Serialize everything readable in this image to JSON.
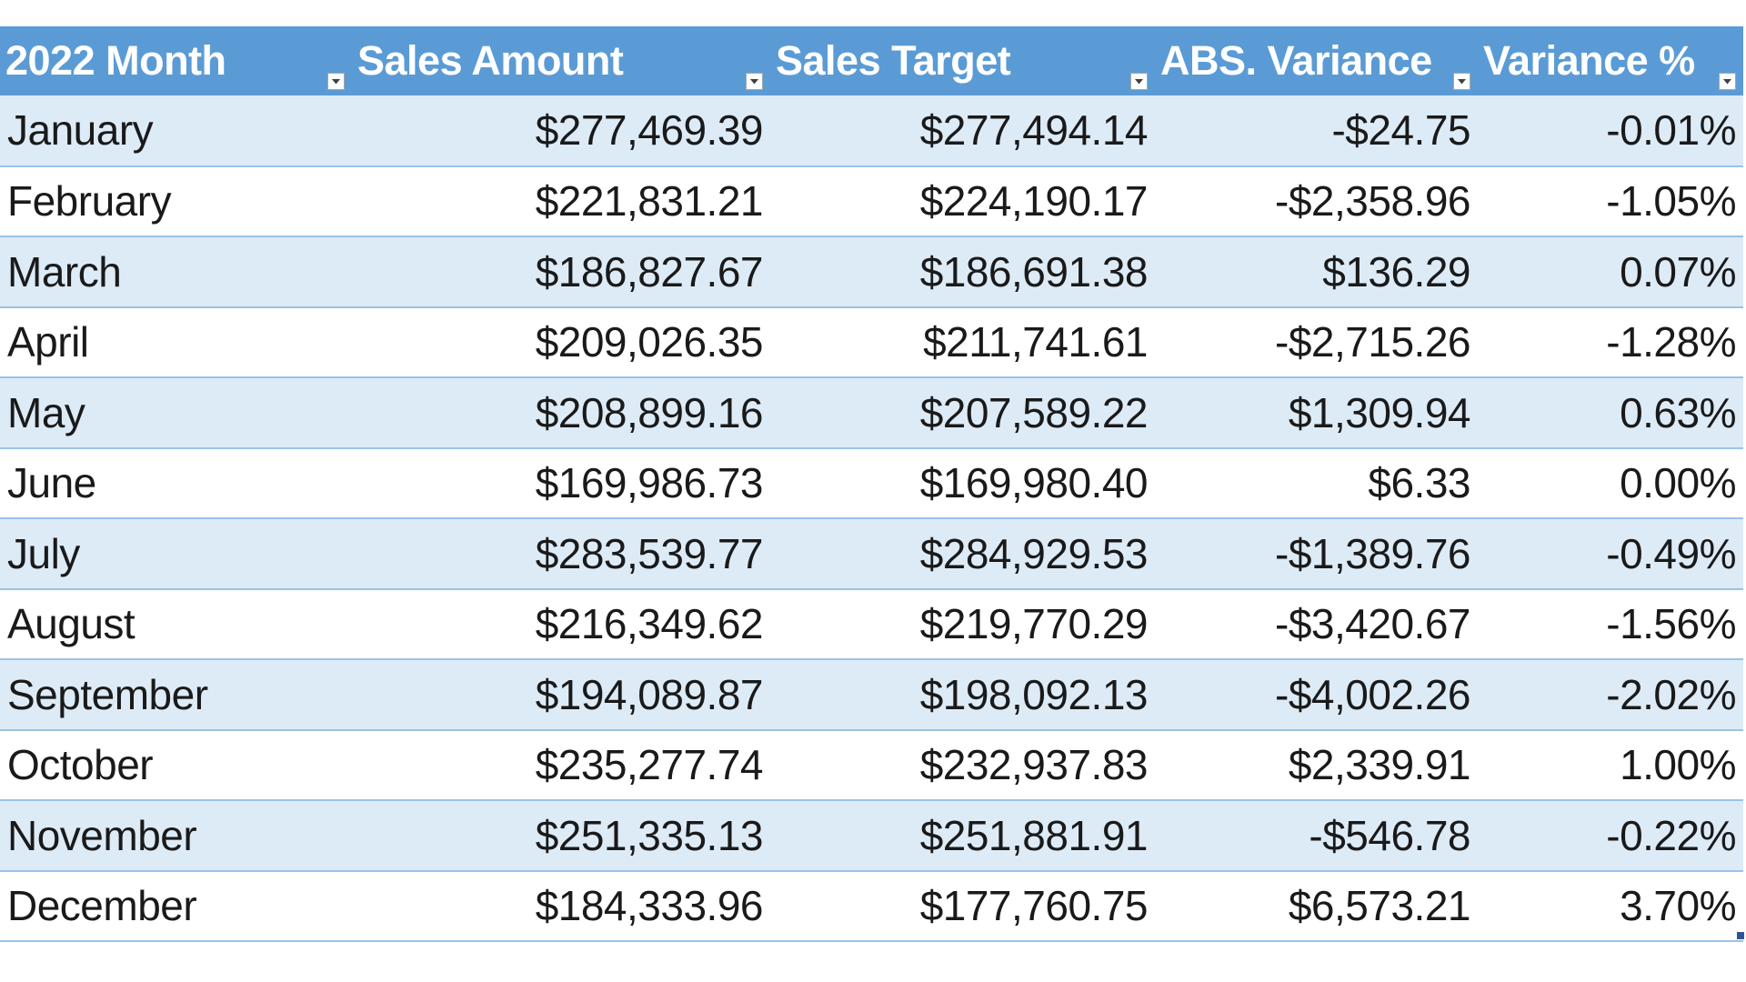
{
  "table": {
    "headers": [
      {
        "label": "2022 Month"
      },
      {
        "label": "Sales Amount"
      },
      {
        "label": "Sales Target"
      },
      {
        "label": "ABS. Variance"
      },
      {
        "label": "Variance %"
      }
    ],
    "rows": [
      {
        "month": "January",
        "sales_amount": "$277,469.39",
        "sales_target": "$277,494.14",
        "abs_variance": "-$24.75",
        "variance_pct": "-0.01%"
      },
      {
        "month": "February",
        "sales_amount": "$221,831.21",
        "sales_target": "$224,190.17",
        "abs_variance": "-$2,358.96",
        "variance_pct": "-1.05%"
      },
      {
        "month": "March",
        "sales_amount": "$186,827.67",
        "sales_target": "$186,691.38",
        "abs_variance": "$136.29",
        "variance_pct": "0.07%"
      },
      {
        "month": "April",
        "sales_amount": "$209,026.35",
        "sales_target": "$211,741.61",
        "abs_variance": "-$2,715.26",
        "variance_pct": "-1.28%"
      },
      {
        "month": "May",
        "sales_amount": "$208,899.16",
        "sales_target": "$207,589.22",
        "abs_variance": "$1,309.94",
        "variance_pct": "0.63%"
      },
      {
        "month": "June",
        "sales_amount": "$169,986.73",
        "sales_target": "$169,980.40",
        "abs_variance": "$6.33",
        "variance_pct": "0.00%"
      },
      {
        "month": "July",
        "sales_amount": "$283,539.77",
        "sales_target": "$284,929.53",
        "abs_variance": "-$1,389.76",
        "variance_pct": "-0.49%"
      },
      {
        "month": "August",
        "sales_amount": "$216,349.62",
        "sales_target": "$219,770.29",
        "abs_variance": "-$3,420.67",
        "variance_pct": "-1.56%"
      },
      {
        "month": "September",
        "sales_amount": "$194,089.87",
        "sales_target": "$198,092.13",
        "abs_variance": "-$4,002.26",
        "variance_pct": "-2.02%"
      },
      {
        "month": "October",
        "sales_amount": "$235,277.74",
        "sales_target": "$232,937.83",
        "abs_variance": "$2,339.91",
        "variance_pct": "1.00%"
      },
      {
        "month": "November",
        "sales_amount": "$251,335.13",
        "sales_target": "$251,881.91",
        "abs_variance": "-$546.78",
        "variance_pct": "-0.22%"
      },
      {
        "month": "December",
        "sales_amount": "$184,333.96",
        "sales_target": "$177,760.75",
        "abs_variance": "$6,573.21",
        "variance_pct": "3.70%"
      }
    ]
  },
  "colors": {
    "header_bg": "#5b9bd5",
    "band_row_bg": "#ddebf7",
    "row_border": "#9bc2e6",
    "header_text": "#ffffff"
  },
  "icons": {
    "filter": "filter-dropdown-icon"
  }
}
